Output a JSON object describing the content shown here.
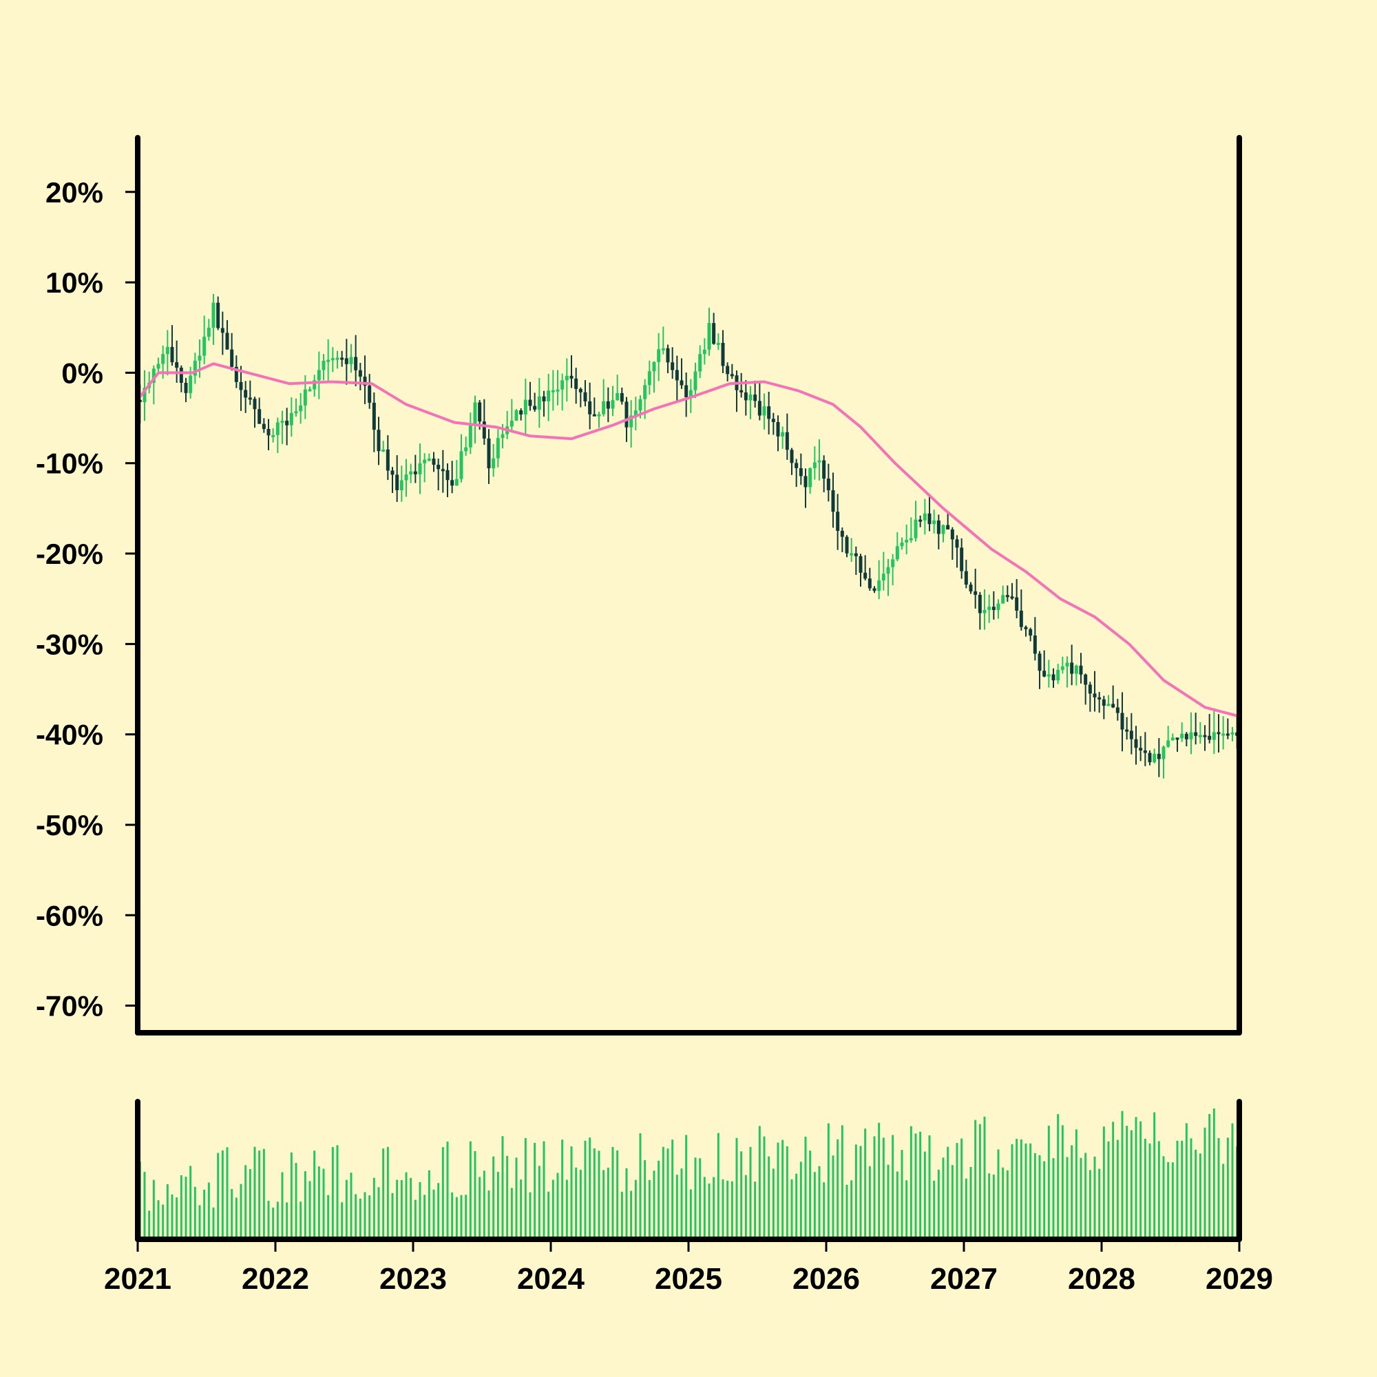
{
  "chart_data": {
    "type": "candlestick",
    "x_axis": {
      "ticks": [
        "2021",
        "2022",
        "2023",
        "2024",
        "2025",
        "2026",
        "2027",
        "2028",
        "2029"
      ],
      "range": [
        2021,
        2029
      ]
    },
    "y_axis": {
      "ticks": [
        "20%",
        "10%",
        "0%",
        "-10%",
        "-20%",
        "-30%",
        "-40%",
        "-50%",
        "-60%",
        "-70%"
      ],
      "range": [
        -73,
        26
      ],
      "unit": "%"
    },
    "price_anchors": [
      {
        "x": 2021.0,
        "close": -3
      },
      {
        "x": 2021.2,
        "close": 3
      },
      {
        "x": 2021.35,
        "close": -2
      },
      {
        "x": 2021.55,
        "close": 7
      },
      {
        "x": 2021.75,
        "close": -2
      },
      {
        "x": 2021.95,
        "close": -7
      },
      {
        "x": 2022.1,
        "close": -5
      },
      {
        "x": 2022.35,
        "close": 1
      },
      {
        "x": 2022.6,
        "close": 1
      },
      {
        "x": 2022.75,
        "close": -8
      },
      {
        "x": 2022.9,
        "close": -13
      },
      {
        "x": 2023.1,
        "close": -9
      },
      {
        "x": 2023.3,
        "close": -12
      },
      {
        "x": 2023.45,
        "close": -4
      },
      {
        "x": 2023.55,
        "close": -10
      },
      {
        "x": 2023.75,
        "close": -4
      },
      {
        "x": 2023.95,
        "close": -3
      },
      {
        "x": 2024.15,
        "close": 0
      },
      {
        "x": 2024.3,
        "close": -5
      },
      {
        "x": 2024.5,
        "close": -2
      },
      {
        "x": 2024.55,
        "close": -6
      },
      {
        "x": 2024.8,
        "close": 3
      },
      {
        "x": 2025.0,
        "close": -3
      },
      {
        "x": 2025.15,
        "close": 5
      },
      {
        "x": 2025.35,
        "close": -2
      },
      {
        "x": 2025.6,
        "close": -5
      },
      {
        "x": 2025.85,
        "close": -12
      },
      {
        "x": 2025.95,
        "close": -9
      },
      {
        "x": 2026.1,
        "close": -18
      },
      {
        "x": 2026.35,
        "close": -24
      },
      {
        "x": 2026.5,
        "close": -20
      },
      {
        "x": 2026.7,
        "close": -16
      },
      {
        "x": 2026.9,
        "close": -18
      },
      {
        "x": 2027.1,
        "close": -26
      },
      {
        "x": 2027.35,
        "close": -25
      },
      {
        "x": 2027.6,
        "close": -34
      },
      {
        "x": 2027.75,
        "close": -32
      },
      {
        "x": 2028.1,
        "close": -38
      },
      {
        "x": 2028.35,
        "close": -43
      },
      {
        "x": 2028.6,
        "close": -40
      },
      {
        "x": 2029.0,
        "close": -40
      }
    ],
    "moving_average": [
      {
        "x": 2021.0,
        "y": -3
      },
      {
        "x": 2021.15,
        "y": 0
      },
      {
        "x": 2021.4,
        "y": 0
      },
      {
        "x": 2021.55,
        "y": 1
      },
      {
        "x": 2021.8,
        "y": 0
      },
      {
        "x": 2022.1,
        "y": -1.2
      },
      {
        "x": 2022.4,
        "y": -1
      },
      {
        "x": 2022.7,
        "y": -1.2
      },
      {
        "x": 2022.95,
        "y": -3.5
      },
      {
        "x": 2023.3,
        "y": -5.5
      },
      {
        "x": 2023.6,
        "y": -6
      },
      {
        "x": 2023.85,
        "y": -7
      },
      {
        "x": 2024.15,
        "y": -7.3
      },
      {
        "x": 2024.45,
        "y": -5.8
      },
      {
        "x": 2024.75,
        "y": -4
      },
      {
        "x": 2025.0,
        "y": -2.8
      },
      {
        "x": 2025.3,
        "y": -1.2
      },
      {
        "x": 2025.55,
        "y": -1
      },
      {
        "x": 2025.8,
        "y": -2
      },
      {
        "x": 2026.05,
        "y": -3.5
      },
      {
        "x": 2026.25,
        "y": -6
      },
      {
        "x": 2026.5,
        "y": -10
      },
      {
        "x": 2026.85,
        "y": -15
      },
      {
        "x": 2027.2,
        "y": -19.5
      },
      {
        "x": 2027.45,
        "y": -22
      },
      {
        "x": 2027.7,
        "y": -25
      },
      {
        "x": 2027.95,
        "y": -27
      },
      {
        "x": 2028.2,
        "y": -30
      },
      {
        "x": 2028.45,
        "y": -34
      },
      {
        "x": 2028.75,
        "y": -37
      },
      {
        "x": 2029.0,
        "y": -38
      }
    ],
    "colors": {
      "up": "#22C55E",
      "down": "#0F3A3A",
      "moving_average": "#F472B6",
      "volume": "#22C55E",
      "background": "#FFF7CC",
      "axes": "#000000"
    },
    "volume_panel": true,
    "grid": false
  }
}
